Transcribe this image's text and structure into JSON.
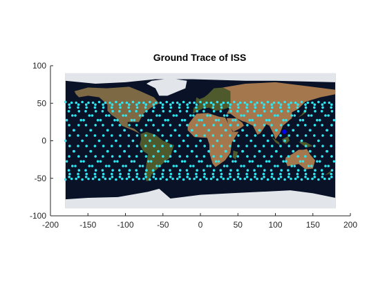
{
  "colors": {
    "ocean": "#0a1228",
    "land": "#7d6a44",
    "land_green": "#4f5a2c",
    "desert": "#a4784c",
    "ice": "#e2e6ea",
    "trace": "#2fe6f0",
    "current_position": "#0000ff",
    "axis": "#262626"
  },
  "chart_data": {
    "type": "scatter",
    "title": "Ground Trace of ISS",
    "xlabel": "",
    "ylabel": "",
    "xlim": [
      -200,
      200
    ],
    "ylim": [
      -100,
      100
    ],
    "xticks": [
      -200,
      -150,
      -100,
      -50,
      0,
      50,
      100,
      150,
      200
    ],
    "yticks": [
      -100,
      -50,
      0,
      50,
      100
    ],
    "xtick_labels": [
      "-200",
      "-150",
      "-100",
      "-50",
      "0",
      "50",
      "100",
      "150",
      "200"
    ],
    "ytick_labels": [
      "-100",
      "-50",
      "0",
      "50",
      "100"
    ],
    "grid": false,
    "background_image": "world-map",
    "map_extent": {
      "lon": [
        -180,
        180
      ],
      "lat": [
        -90,
        90
      ]
    },
    "ground_trace": {
      "inclination_deg": 51.6,
      "orbits": 16,
      "ascending_node_start_lon": -180,
      "node_spacing_deg": 22.5,
      "marker": "dot"
    },
    "current_position": {
      "lon": 112,
      "lat": 12
    }
  }
}
